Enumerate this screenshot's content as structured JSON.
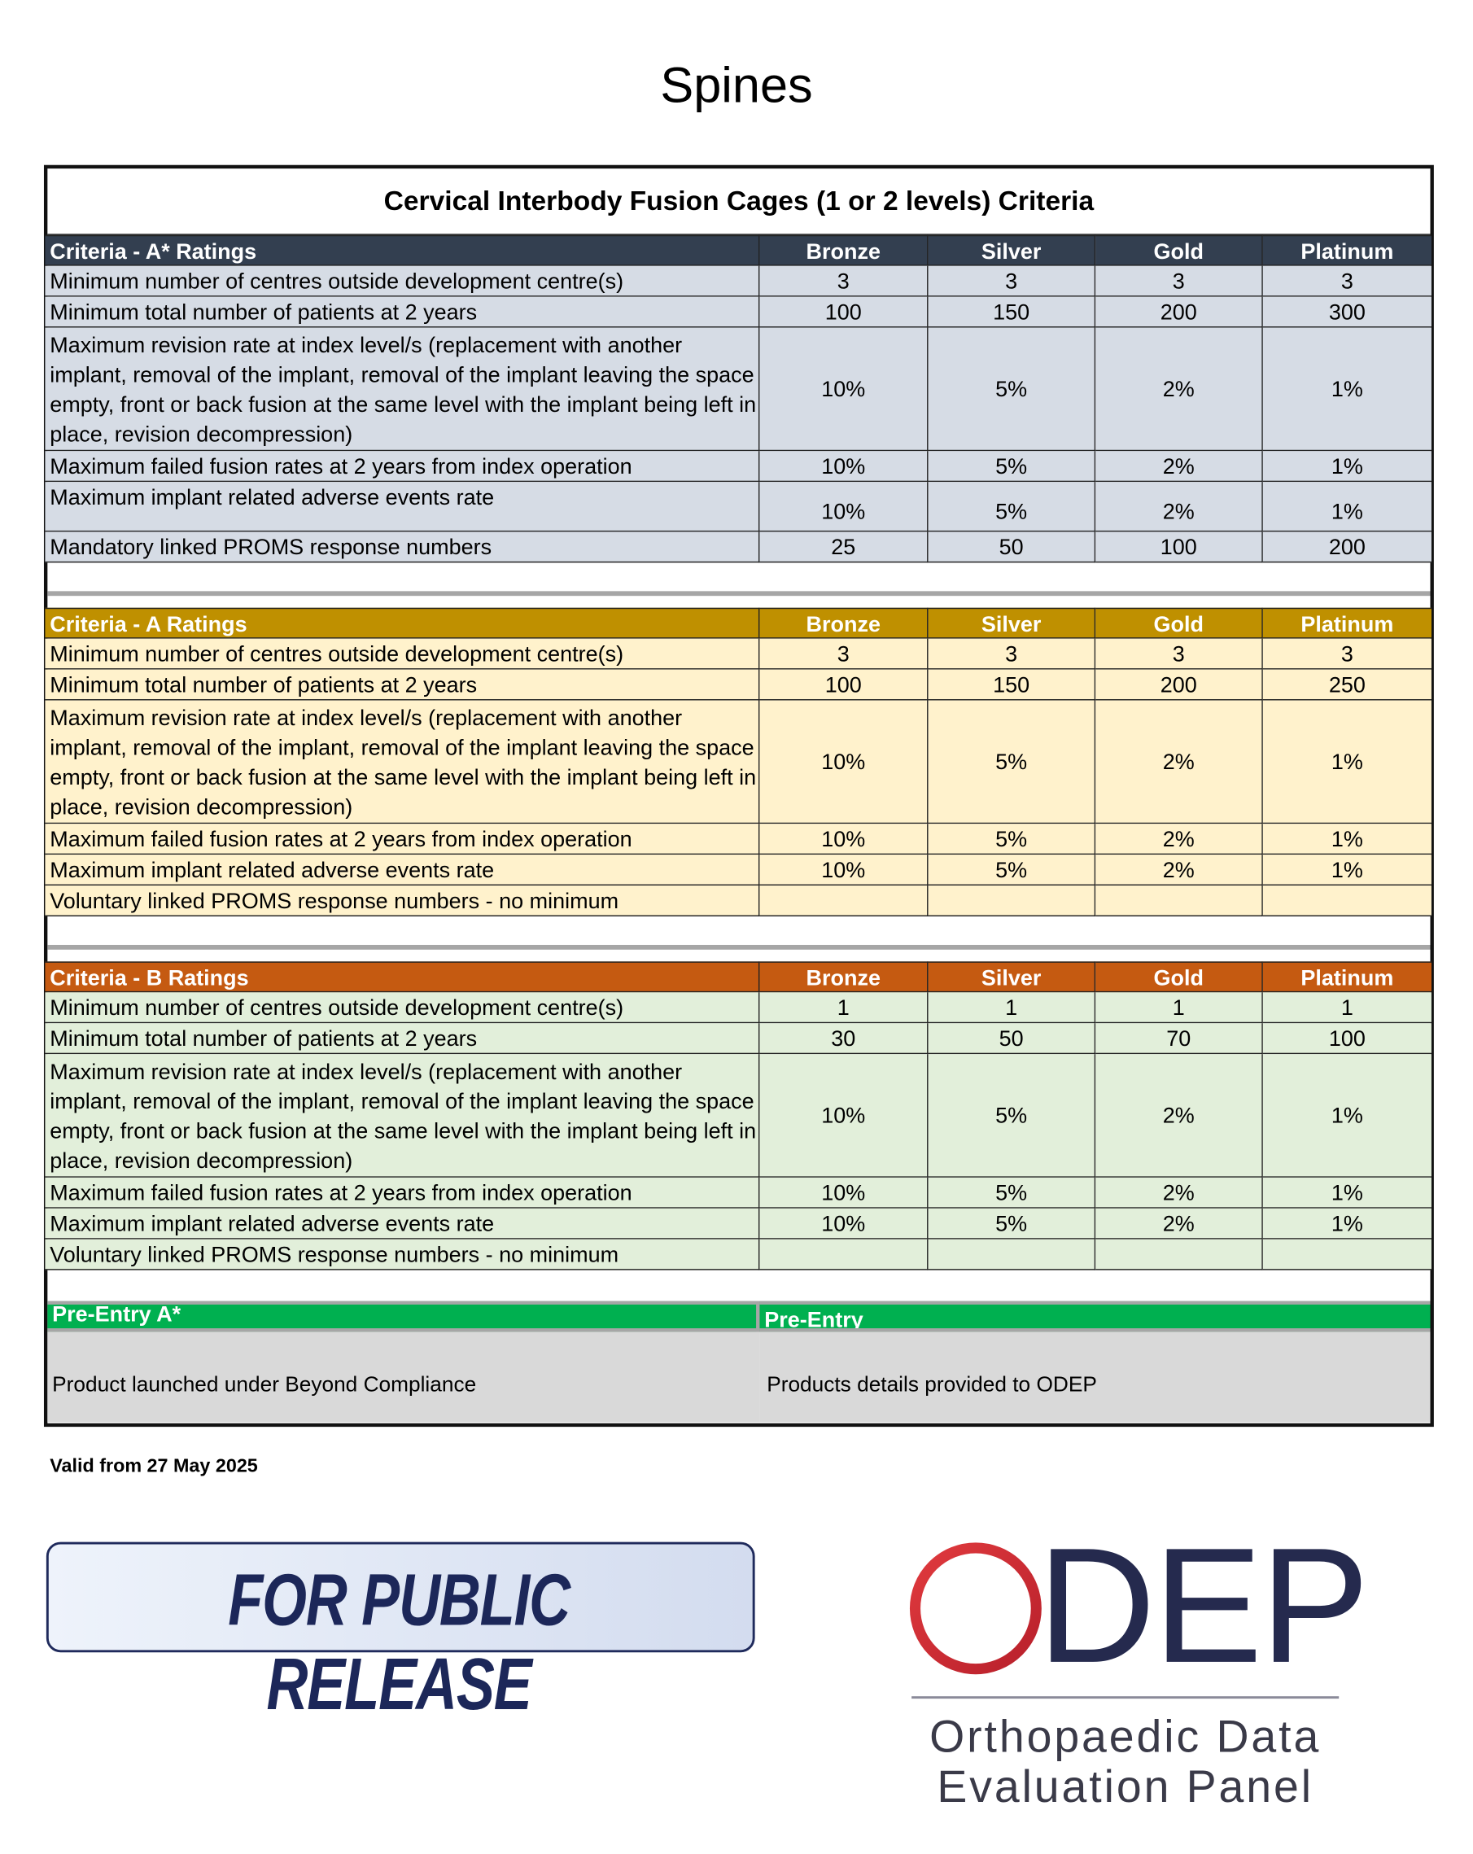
{
  "title": "Spines",
  "table": {
    "title": "Cervical Interbody Fusion Cages (1 or 2 levels) Criteria",
    "sections": [
      {
        "header": [
          "Criteria - A* Ratings",
          "Bronze",
          "Silver",
          "Gold",
          "Platinum"
        ],
        "rows": [
          [
            "Minimum number of centres outside development centre(s)",
            "3",
            "3",
            "3",
            "3"
          ],
          [
            "Minimum total number of patients at 2 years",
            "100",
            "150",
            "200",
            "300"
          ],
          [
            "Maximum revision rate at index level/s (replacement with another implant, removal of the implant, removal of the implant leaving the space empty, front or back fusion at the same level with the implant being left in place, revision decompression)",
            "10%",
            "5%",
            "2%",
            "1%"
          ],
          [
            "Maximum failed fusion rates at 2 years from index operation",
            "10%",
            "5%",
            "2%",
            "1%"
          ],
          [
            "Maximum implant related adverse events rate",
            "10%",
            "5%",
            "2%",
            "1%"
          ],
          [
            "Mandatory linked PROMS response numbers",
            "25",
            "50",
            "100",
            "200"
          ]
        ]
      },
      {
        "header": [
          "Criteria - A Ratings",
          "Bronze",
          "Silver",
          "Gold",
          "Platinum"
        ],
        "rows": [
          [
            "Minimum number of centres outside development centre(s)",
            "3",
            "3",
            "3",
            "3"
          ],
          [
            "Minimum total number of patients at 2 years",
            "100",
            "150",
            "200",
            "250"
          ],
          [
            "Maximum revision rate at index level/s (replacement with another implant, removal of the implant, removal of the implant leaving the space empty, front or back fusion at the same level with the implant being left in place, revision decompression)",
            "10%",
            "5%",
            "2%",
            "1%"
          ],
          [
            "Maximum failed fusion rates at 2 years from index operation",
            "10%",
            "5%",
            "2%",
            "1%"
          ],
          [
            "Maximum implant related adverse events rate",
            "10%",
            "5%",
            "2%",
            "1%"
          ],
          [
            "Voluntary linked PROMS response numbers - no minimum"
          ]
        ]
      },
      {
        "header": [
          "Criteria - B Ratings",
          "Bronze",
          "Silver",
          "Gold",
          "Platinum"
        ],
        "rows": [
          [
            "Minimum number of centres outside development centre(s)",
            "1",
            "1",
            "1",
            "1"
          ],
          [
            "Minimum total number of patients at 2 years",
            "30",
            "50",
            "70",
            "100"
          ],
          [
            "Maximum revision rate at index level/s (replacement with another implant, removal of the implant, removal of the implant leaving the space empty, front or back fusion at the same level with the implant being left in place, revision decompression)",
            "10%",
            "5%",
            "2%",
            "1%"
          ],
          [
            "Maximum failed fusion rates at 2 years from index operation",
            "10%",
            "5%",
            "2%",
            "1%"
          ],
          [
            "Maximum implant related adverse events rate",
            "10%",
            "5%",
            "2%",
            "1%"
          ],
          [
            "Voluntary linked PROMS response numbers - no minimum"
          ]
        ]
      }
    ],
    "pre_entry": {
      "headers": [
        "Pre-Entry A*",
        "Pre-Entry"
      ],
      "cells": [
        "Product launched under Beyond Compliance",
        "Products details provided to ODEP"
      ]
    }
  },
  "footer": {
    "valid_from": "Valid from 27 May 2025",
    "badge": "FOR PUBLIC RELEASE",
    "logo": {
      "mark": "DEP",
      "name_lines": [
        "Orthopaedic Data",
        "Evaluation Panel"
      ]
    }
  }
}
